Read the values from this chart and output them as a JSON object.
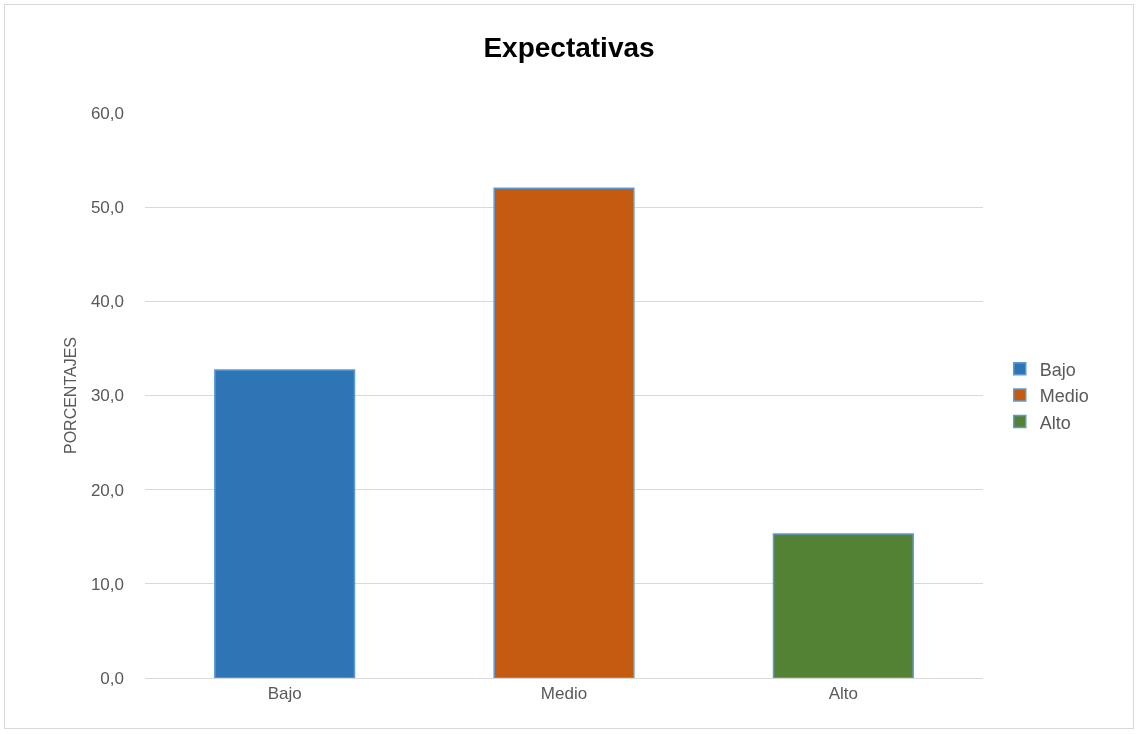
{
  "chart_data": {
    "type": "bar",
    "title": "Expectativas",
    "ylabel": "PORCENTAJES",
    "categories": [
      "Bajo",
      "Medio",
      "Alto"
    ],
    "series": [
      {
        "name": "Bajo",
        "color": "#2e75b6",
        "values": [
          32.7,
          null,
          null
        ]
      },
      {
        "name": "Medio",
        "color": "#c55a11",
        "values": [
          null,
          52.0,
          null
        ]
      },
      {
        "name": "Alto",
        "color": "#548235",
        "values": [
          null,
          null,
          15.3
        ]
      }
    ],
    "ylim": [
      0,
      60
    ],
    "yticks": [
      {
        "value": 0,
        "label": "0,0"
      },
      {
        "value": 10,
        "label": "10,0"
      },
      {
        "value": 20,
        "label": "20,0"
      },
      {
        "value": 30,
        "label": "30,0"
      },
      {
        "value": 40,
        "label": "40,0"
      },
      {
        "value": 50,
        "label": "50,0"
      },
      {
        "value": 60,
        "label": "60,0"
      }
    ],
    "grid": "y",
    "legend": "right"
  }
}
